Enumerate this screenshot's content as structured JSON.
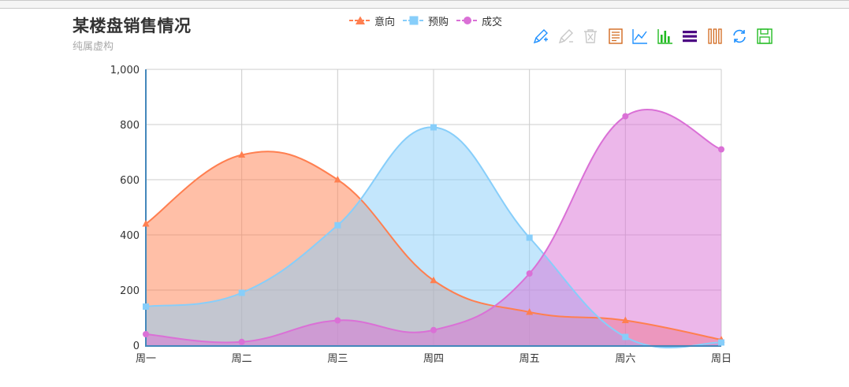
{
  "title": "某楼盘销售情况",
  "subtitle": "纯属虚构",
  "toolbox": [
    "mark-icon",
    "mark-undo-icon",
    "mark-clear-icon",
    "data-view-icon",
    "line-chart-icon",
    "bar-chart-icon",
    "stack-icon",
    "tiled-icon",
    "restore-icon",
    "save-image-icon"
  ],
  "toolbox_colors": [
    "#1e90ff",
    "#c8c8c8",
    "#c8c8c8",
    "#d2691e",
    "#1e90ff",
    "#22bb22",
    "#4b0082",
    "#d2691e",
    "#1e90ff",
    "#22bb22"
  ],
  "chart_data": {
    "type": "area",
    "smooth": true,
    "categories": [
      "周一",
      "周二",
      "周三",
      "周四",
      "周五",
      "周六",
      "周日"
    ],
    "ylim": [
      0,
      1000
    ],
    "yticks": [
      0,
      200,
      400,
      600,
      800,
      1000
    ],
    "ytick_labels": [
      "0",
      "200",
      "400",
      "600",
      "800",
      "1,000"
    ],
    "grid": true,
    "legend_position": "top-center",
    "series": [
      {
        "name": "意向",
        "symbol": "triangle",
        "color": "#ff7f50",
        "fill": "rgba(255,127,80,0.5)",
        "values": [
          440,
          690,
          600,
          235,
          120,
          90,
          20
        ]
      },
      {
        "name": "预购",
        "symbol": "square",
        "color": "#87cefa",
        "fill": "rgba(135,206,250,0.5)",
        "values": [
          140,
          190,
          435,
          790,
          390,
          30,
          10
        ]
      },
      {
        "name": "成交",
        "symbol": "circle",
        "color": "#da70d6",
        "fill": "rgba(218,112,214,0.5)",
        "values": [
          40,
          12,
          90,
          55,
          260,
          830,
          710
        ]
      }
    ]
  }
}
